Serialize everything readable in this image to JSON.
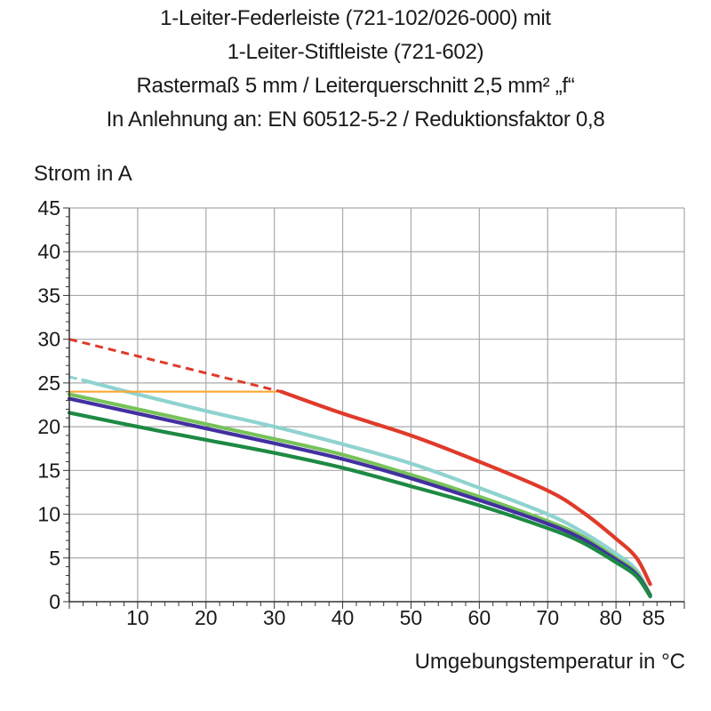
{
  "title_lines": [
    "1-Leiter-Federleiste (721-102/026-000) mit",
    "1-Leiter-Stiftleiste (721-602)",
    "Rastermaß 5 mm / Leiterquerschnitt 2,5 mm² „f“",
    "In Anlehnung an: EN 60512-5-2 / Reduktionsfaktor 0,8"
  ],
  "chart_data": {
    "type": "line",
    "title": "1-Leiter-Federleiste (721-102/026-000) mit 1-Leiter-Stiftleiste (721-602) Rastermaß 5 mm / Leiterquerschnitt 2,5 mm² „f“ In Anlehnung an: EN 60512-5-2 / Reduktionsfaktor 0,8",
    "xlabel": "Umgebungstemperatur in °C",
    "ylabel": "Strom in A",
    "xlim": [
      0,
      90
    ],
    "ylim": [
      0,
      45
    ],
    "x_ticks": [
      10,
      20,
      30,
      40,
      50,
      60,
      70,
      80,
      85
    ],
    "y_ticks": [
      0,
      5,
      10,
      15,
      20,
      25,
      30,
      35,
      40,
      45
    ],
    "grid": true,
    "series": [
      {
        "color": "#e03a2a",
        "dashed_segment": {
          "x": [
            0,
            31
          ],
          "y": [
            30,
            24
          ]
        },
        "points": {
          "x": [
            31,
            40,
            50,
            60,
            70,
            75,
            80,
            83,
            85
          ],
          "y": [
            24,
            21.5,
            19,
            16,
            12.7,
            10.3,
            7.2,
            5,
            2
          ]
        }
      },
      {
        "color": "#fca832",
        "points": {
          "x": [
            0,
            31
          ],
          "y": [
            24,
            24
          ]
        }
      },
      {
        "color": "#8fd3d0",
        "dashed_segment": {
          "x": [
            0,
            2
          ],
          "y": [
            25.7,
            25.3
          ]
        },
        "points": {
          "x": [
            2,
            10,
            20,
            30,
            40,
            50,
            60,
            70,
            75,
            80,
            83,
            85
          ],
          "y": [
            25.3,
            23.7,
            21.8,
            20,
            18,
            15.8,
            13,
            10,
            8,
            5.5,
            3.6,
            0.8
          ]
        }
      },
      {
        "color": "#77c25a",
        "points": {
          "x": [
            0,
            10,
            20,
            30,
            40,
            50,
            60,
            70,
            75,
            80,
            83,
            85
          ],
          "y": [
            23.7,
            22,
            20.3,
            18.6,
            16.8,
            14.5,
            12,
            9.2,
            7.5,
            5,
            3.3,
            0.8
          ]
        }
      },
      {
        "color": "#4330a0",
        "points": {
          "x": [
            0,
            10,
            20,
            30,
            40,
            50,
            60,
            70,
            75,
            80,
            83,
            85
          ],
          "y": [
            23.2,
            21.5,
            19.8,
            18.1,
            16.3,
            14.1,
            11.6,
            8.9,
            7.2,
            4.8,
            3.1,
            0.7
          ]
        }
      },
      {
        "color": "#1d8a43",
        "points": {
          "x": [
            0,
            10,
            20,
            30,
            40,
            50,
            60,
            70,
            75,
            80,
            83,
            85
          ],
          "y": [
            21.6,
            20,
            18.5,
            17,
            15.3,
            13.2,
            11,
            8.4,
            6.8,
            4.5,
            2.9,
            0.6
          ]
        }
      }
    ]
  }
}
